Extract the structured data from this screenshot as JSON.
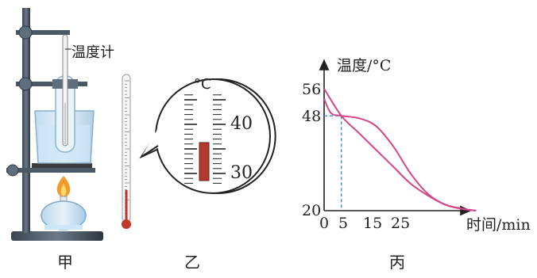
{
  "panels": {
    "jia": {
      "caption": "甲",
      "thermometer_label": "温度计"
    },
    "yi": {
      "caption": "乙",
      "unit": "°C",
      "scale_top": "40",
      "scale_bottom": "30"
    },
    "bing": {
      "caption": "丙"
    }
  },
  "colors": {
    "curve": "#d4458a",
    "dash": "#2a8bd6",
    "mercury": "#b03a2e",
    "axis": "#222222"
  },
  "chart_data": {
    "type": "line",
    "title": "",
    "ylabel": "温度/°C",
    "xlabel": "时间/min",
    "x_ticks": [
      "0",
      "5",
      "15",
      "25"
    ],
    "y_ticks": [
      "56",
      "48",
      "20"
    ],
    "xlim": [
      0,
      45
    ],
    "ylim": [
      20,
      66
    ],
    "series": [
      {
        "points": [
          [
            0,
            56
          ],
          [
            5,
            48
          ],
          [
            10,
            43
          ],
          [
            15,
            38
          ],
          [
            20,
            33
          ],
          [
            25,
            28
          ],
          [
            30,
            24.5
          ],
          [
            35,
            21.8
          ],
          [
            40,
            20.6
          ],
          [
            44,
            20
          ]
        ]
      },
      {
        "points": [
          [
            0,
            53
          ],
          [
            2,
            48.8
          ],
          [
            5,
            48
          ],
          [
            10,
            47.3
          ],
          [
            15,
            45
          ],
          [
            20,
            39
          ],
          [
            25,
            31
          ],
          [
            30,
            25
          ],
          [
            35,
            21.8
          ],
          [
            40,
            20.5
          ],
          [
            44,
            20
          ]
        ]
      }
    ],
    "reference_point": {
      "x": 5,
      "y": 48
    }
  }
}
